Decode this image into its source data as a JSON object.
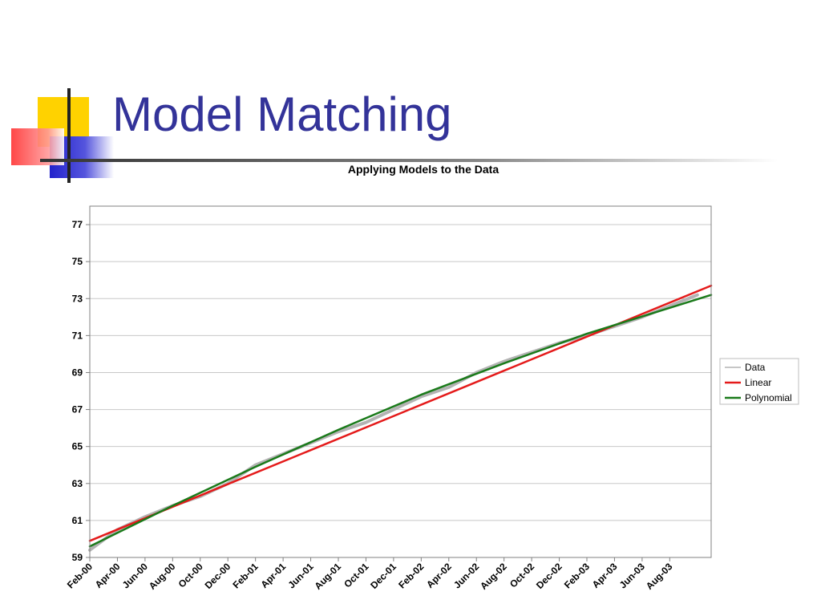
{
  "slide": {
    "title": "Model Matching"
  },
  "colors": {
    "title": "#333399",
    "data_series": "#b3b3b3",
    "linear": "#e41a1a",
    "polynomial": "#1a7a1a",
    "deco_yellow": "#ffd200",
    "deco_red": "#ff3333",
    "deco_blue": "#3333cc"
  },
  "chart_data": {
    "type": "line",
    "title": "Applying Models to the Data",
    "xlabel": "",
    "ylabel": "",
    "ylim": [
      59,
      78
    ],
    "yticks": [
      59,
      61,
      63,
      65,
      67,
      69,
      71,
      73,
      75,
      77
    ],
    "xlim": [
      "2000-02",
      "2003-11"
    ],
    "xtick_labels": [
      "Feb-00",
      "Apr-00",
      "Jun-00",
      "Aug-00",
      "Oct-00",
      "Dec-00",
      "Feb-01",
      "Apr-01",
      "Jun-01",
      "Aug-01",
      "Oct-01",
      "Dec-01",
      "Feb-02",
      "Apr-02",
      "Jun-02",
      "Aug-02",
      "Oct-02",
      "Dec-02",
      "Feb-03",
      "Apr-03",
      "Jun-03",
      "Aug-03"
    ],
    "grid": true,
    "legend_position": "right",
    "series": [
      {
        "name": "Data",
        "x": [
          "2000-02",
          "2000-04",
          "2000-06",
          "2000-08",
          "2000-10",
          "2000-12",
          "2001-02",
          "2001-04",
          "2001-06",
          "2001-08",
          "2001-10",
          "2001-12",
          "2002-02",
          "2002-04",
          "2002-06",
          "2002-08",
          "2002-10",
          "2002-12",
          "2003-02",
          "2003-04",
          "2003-06",
          "2003-08",
          "2003-10"
        ],
        "values": [
          59.4,
          60.5,
          61.2,
          61.8,
          62.3,
          63.0,
          64.0,
          64.6,
          65.2,
          65.8,
          66.3,
          67.0,
          67.7,
          68.2,
          69.0,
          69.6,
          70.1,
          70.6,
          71.0,
          71.5,
          72.0,
          72.6,
          73.2
        ]
      },
      {
        "name": "Linear",
        "x": [
          "2000-02",
          "2003-11"
        ],
        "values": [
          59.9,
          73.7
        ]
      },
      {
        "name": "Polynomial",
        "x": [
          "2000-02",
          "2000-08",
          "2001-02",
          "2001-08",
          "2002-02",
          "2002-08",
          "2003-02",
          "2003-08",
          "2003-11"
        ],
        "values": [
          59.6,
          61.8,
          63.9,
          65.9,
          67.8,
          69.5,
          71.1,
          72.5,
          73.2
        ]
      }
    ],
    "legend": [
      "Data",
      "Linear",
      "Polynomial"
    ]
  }
}
